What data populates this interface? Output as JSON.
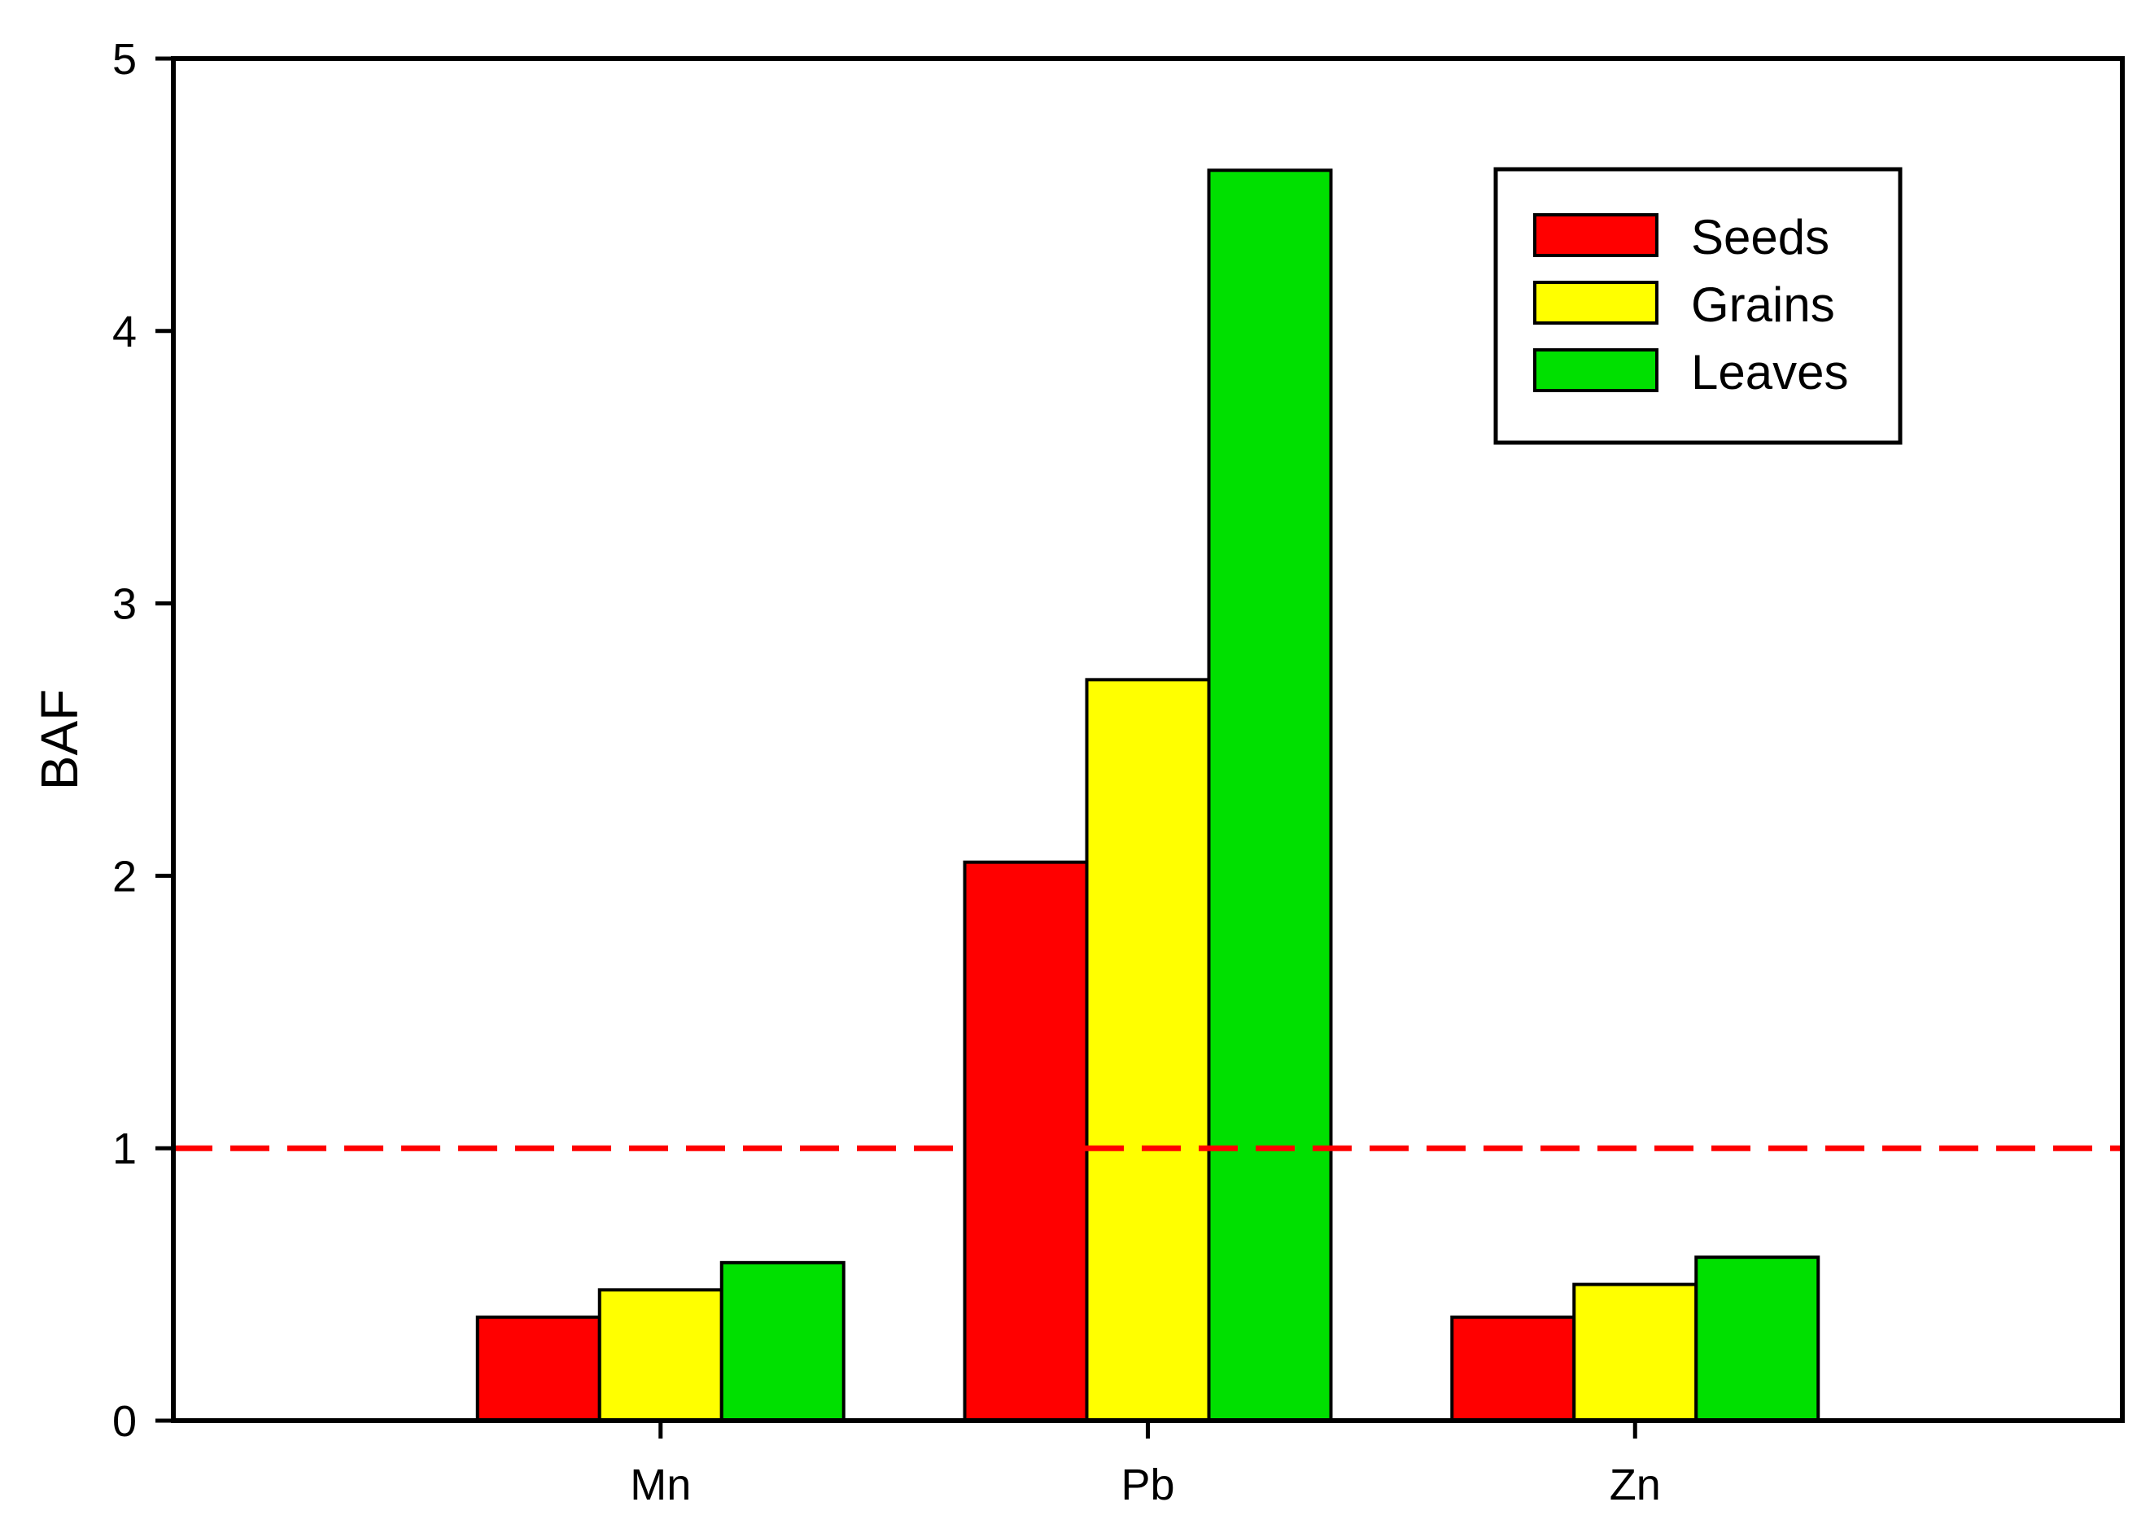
{
  "chart_data": {
    "type": "bar",
    "title": "",
    "xlabel": "",
    "ylabel": "BAF",
    "ylim": [
      0,
      5
    ],
    "yticks": [
      0,
      1,
      2,
      3,
      4,
      5
    ],
    "categories": [
      "Mn",
      "Pb",
      "Zn"
    ],
    "series": [
      {
        "name": "Seeds",
        "color": "#ff0000",
        "values": [
          0.38,
          2.05,
          0.38
        ]
      },
      {
        "name": "Grains",
        "color": "#ffff00",
        "values": [
          0.48,
          2.72,
          0.5
        ]
      },
      {
        "name": "Leaves",
        "color": "#00e000",
        "values": [
          0.58,
          4.59,
          0.6
        ]
      }
    ],
    "reference_line": {
      "y": 1,
      "color": "#ff0000",
      "style": "dashed"
    },
    "legend_position": "top-right",
    "grid": false
  }
}
